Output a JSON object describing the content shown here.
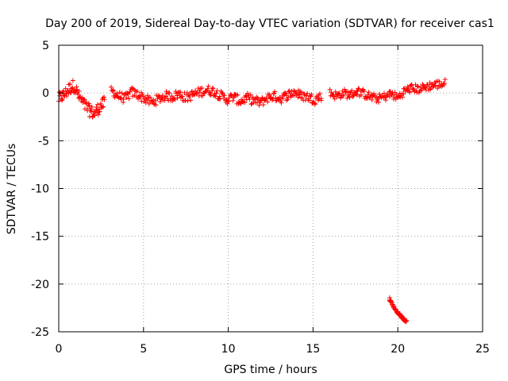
{
  "chart_data": {
    "type": "scatter",
    "title": "Day 200 of 2019, Sidereal Day-to-day VTEC variation (SDTVAR) for receiver cas1",
    "xlabel": "GPS time / hours",
    "ylabel": "SDTVAR / TECUs",
    "xlim": [
      0,
      25
    ],
    "ylim": [
      -25,
      5
    ],
    "xticks": [
      0,
      5,
      10,
      15,
      20,
      25
    ],
    "yticks": [
      5,
      0,
      -5,
      -10,
      -15,
      -20,
      -25
    ],
    "grid": true,
    "marker": "plus",
    "colors": {
      "points": "#ff0000",
      "grid": "#a0a0a0",
      "axes": "#000000"
    },
    "series": [
      {
        "name": "SDTVAR",
        "segments": [
          {
            "x": [
              0.0,
              0.3,
              0.6,
              0.9,
              1.2,
              1.5,
              1.8,
              2.1,
              2.4,
              2.7
            ],
            "y": [
              -0.6,
              -0.2,
              0.4,
              0.8,
              -0.4,
              -1.2,
              -1.8,
              -2.2,
              -1.5,
              -1.0
            ],
            "spread": 1.3
          },
          {
            "x": [
              3.1,
              3.5,
              3.9,
              4.3,
              4.7,
              5.1,
              5.5,
              5.9,
              6.3,
              6.7,
              7.1,
              7.5,
              7.9,
              8.3,
              8.7,
              9.1,
              9.5,
              9.9,
              10.3,
              10.7,
              11.1,
              11.5,
              11.9,
              12.3,
              12.7,
              13.1,
              13.5,
              13.9,
              14.3,
              14.7,
              15.1,
              15.5
            ],
            "y": [
              0.3,
              -0.3,
              -0.6,
              0.1,
              -0.2,
              -0.6,
              -1.0,
              -0.6,
              -0.3,
              -0.4,
              -0.1,
              -0.5,
              -0.2,
              0.1,
              0.3,
              0.2,
              -0.2,
              -0.7,
              -0.4,
              -0.9,
              -0.5,
              -0.8,
              -1.0,
              -0.5,
              -0.3,
              -0.6,
              -0.2,
              0.1,
              -0.3,
              -0.4,
              -0.7,
              -0.3
            ],
            "spread": 1.0
          },
          {
            "x": [
              16.0,
              16.4,
              16.8,
              17.2,
              17.6,
              18.0,
              18.4,
              18.8,
              19.2,
              19.6,
              20.0,
              20.4,
              20.8,
              21.2,
              21.6,
              22.0,
              22.4,
              22.8
            ],
            "y": [
              0.0,
              -0.3,
              0.0,
              -0.2,
              0.2,
              -0.1,
              -0.4,
              -0.6,
              -0.4,
              -0.1,
              -0.5,
              0.2,
              0.5,
              0.4,
              0.6,
              0.8,
              0.9,
              1.0
            ],
            "spread": 0.9
          },
          {
            "x": [
              19.5,
              19.7,
              19.9,
              20.1,
              20.3,
              20.5
            ],
            "y": [
              -21.5,
              -22.2,
              -22.8,
              -23.2,
              -23.6,
              -23.9
            ],
            "spread": 0.25
          }
        ]
      }
    ]
  }
}
